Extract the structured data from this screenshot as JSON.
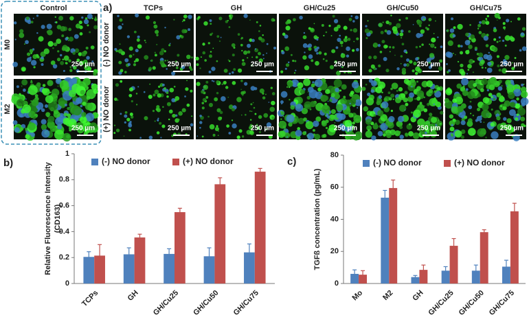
{
  "panel_a": {
    "label": "a)",
    "control": "Control",
    "macrophage_rows": [
      "M0",
      "M2"
    ],
    "donor_rows": [
      "(-) NO donor",
      "(+) NO donor"
    ],
    "columns": [
      "TCPs",
      "GH",
      "GH/Cu25",
      "GH/Cu50",
      "GH/Cu75"
    ],
    "scale_bar": "250 µm"
  },
  "chart_data": [
    {
      "type": "bar",
      "panel_label": "b)",
      "ylabel": [
        "Relative Fluorescence Intensity",
        "(CD163)"
      ],
      "categories": [
        "TCPs",
        "GH",
        "GH/Cu25",
        "GH/Cu50",
        "GH/Cu75"
      ],
      "series": [
        {
          "name": "(-) NO donor",
          "color": "#4f81bd",
          "values": [
            0.205,
            0.225,
            0.228,
            0.21,
            0.24
          ],
          "errors": [
            0.04,
            0.05,
            0.04,
            0.065,
            0.065
          ]
        },
        {
          "name": "(+) NO donor",
          "color": "#c0504d",
          "values": [
            0.215,
            0.355,
            0.55,
            0.765,
            0.862
          ],
          "errors": [
            0.085,
            0.025,
            0.03,
            0.05,
            0.025
          ]
        }
      ],
      "ylim": [
        0,
        1
      ],
      "yticks": [
        0,
        0.2,
        0.4,
        0.6,
        0.8,
        1
      ],
      "legend": "top"
    },
    {
      "type": "bar",
      "panel_label": "c)",
      "ylabel": [
        "TGFß concentration (pg/mL)"
      ],
      "categories": [
        "Mo",
        "M2",
        "GH",
        "GH/Cu25",
        "GH/Cu50",
        "GH/Cu75"
      ],
      "series": [
        {
          "name": "(-) NO donor",
          "color": "#4f81bd",
          "values": [
            6,
            53.5,
            4,
            8,
            8,
            10.5
          ],
          "errors": [
            2.5,
            4.5,
            1,
            2.5,
            3.5,
            4
          ]
        },
        {
          "name": "(+) NO donor",
          "color": "#c0504d",
          "values": [
            5.5,
            59.5,
            8.5,
            23.5,
            32,
            45
          ],
          "errors": [
            2.5,
            5,
            3,
            4.5,
            1.5,
            5
          ]
        }
      ],
      "ylim": [
        0,
        80
      ],
      "yticks": [
        0,
        20,
        40,
        60,
        80
      ],
      "legend": "top"
    }
  ]
}
